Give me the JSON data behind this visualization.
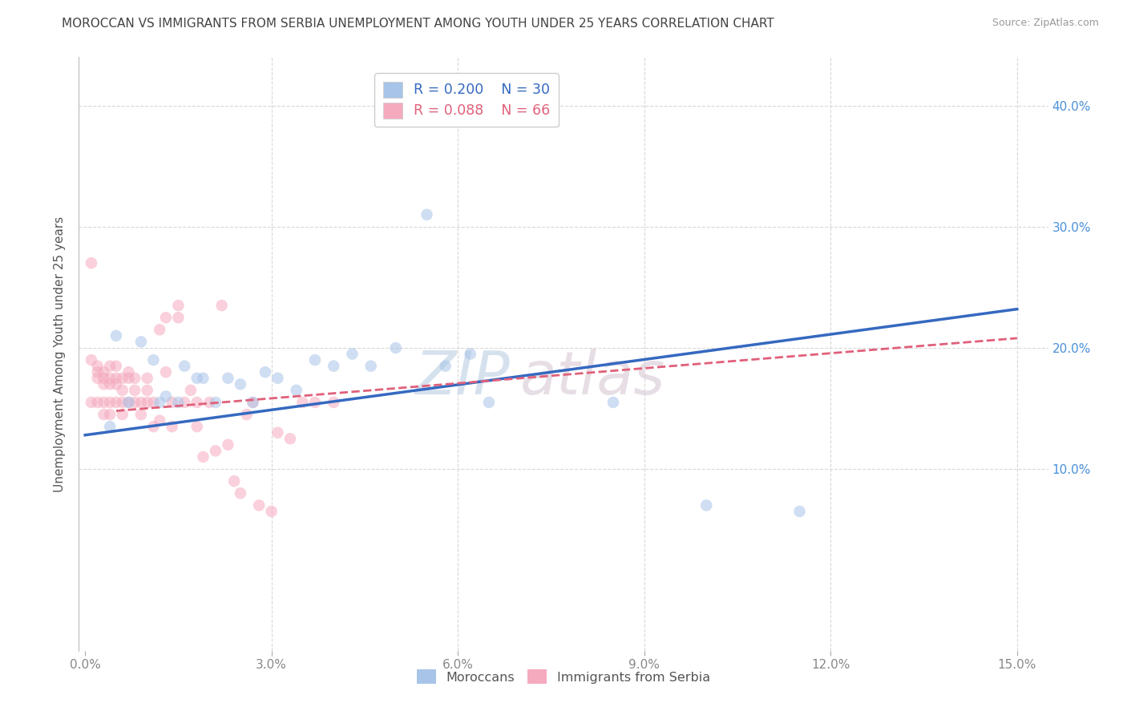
{
  "title": "MOROCCAN VS IMMIGRANTS FROM SERBIA UNEMPLOYMENT AMONG YOUTH UNDER 25 YEARS CORRELATION CHART",
  "source": "Source: ZipAtlas.com",
  "ylabel": "Unemployment Among Youth under 25 years",
  "xlim": [
    -0.001,
    0.155
  ],
  "ylim": [
    -0.05,
    0.44
  ],
  "xticks": [
    0.0,
    0.03,
    0.06,
    0.09,
    0.12,
    0.15
  ],
  "xtick_labels": [
    "0.0%",
    "3.0%",
    "6.0%",
    "9.0%",
    "12.0%",
    "15.0%"
  ],
  "ytick_labels_right": [
    "10.0%",
    "20.0%",
    "30.0%",
    "40.0%"
  ],
  "yticks_right": [
    0.1,
    0.2,
    0.3,
    0.4
  ],
  "watermark_zip": "ZIP",
  "watermark_atlas": "atlas",
  "legend_blue_r": "R = 0.200",
  "legend_blue_n": "N = 30",
  "legend_pink_r": "R = 0.088",
  "legend_pink_n": "N = 66",
  "legend_label_blue": "Moroccans",
  "legend_label_pink": "Immigrants from Serbia",
  "blue_color": "#a8c4e8",
  "pink_color": "#f5aabe",
  "blue_line_color": "#3569c0",
  "pink_line_color": "#e0607a",
  "title_color": "#444444",
  "source_color": "#999999",
  "blue_scatter_x": [
    0.004,
    0.005,
    0.007,
    0.009,
    0.011,
    0.012,
    0.013,
    0.015,
    0.016,
    0.018,
    0.019,
    0.021,
    0.023,
    0.025,
    0.027,
    0.029,
    0.031,
    0.034,
    0.037,
    0.04,
    0.043,
    0.046,
    0.05,
    0.055,
    0.058,
    0.062,
    0.065,
    0.085,
    0.1,
    0.115
  ],
  "blue_scatter_y": [
    0.135,
    0.21,
    0.155,
    0.205,
    0.19,
    0.155,
    0.16,
    0.155,
    0.185,
    0.175,
    0.175,
    0.155,
    0.175,
    0.17,
    0.155,
    0.18,
    0.175,
    0.165,
    0.19,
    0.185,
    0.195,
    0.185,
    0.2,
    0.31,
    0.185,
    0.195,
    0.155,
    0.155,
    0.07,
    0.065
  ],
  "pink_scatter_x": [
    0.001,
    0.001,
    0.001,
    0.002,
    0.002,
    0.002,
    0.002,
    0.003,
    0.003,
    0.003,
    0.003,
    0.003,
    0.004,
    0.004,
    0.004,
    0.004,
    0.004,
    0.005,
    0.005,
    0.005,
    0.005,
    0.006,
    0.006,
    0.006,
    0.006,
    0.007,
    0.007,
    0.007,
    0.008,
    0.008,
    0.008,
    0.009,
    0.009,
    0.01,
    0.01,
    0.01,
    0.011,
    0.011,
    0.012,
    0.012,
    0.013,
    0.013,
    0.014,
    0.014,
    0.015,
    0.015,
    0.016,
    0.017,
    0.018,
    0.018,
    0.019,
    0.02,
    0.021,
    0.022,
    0.023,
    0.024,
    0.025,
    0.026,
    0.027,
    0.028,
    0.03,
    0.031,
    0.033,
    0.035,
    0.037,
    0.04
  ],
  "pink_scatter_y": [
    0.27,
    0.19,
    0.155,
    0.185,
    0.18,
    0.175,
    0.155,
    0.18,
    0.175,
    0.17,
    0.155,
    0.145,
    0.185,
    0.175,
    0.17,
    0.155,
    0.145,
    0.185,
    0.175,
    0.17,
    0.155,
    0.175,
    0.165,
    0.155,
    0.145,
    0.18,
    0.175,
    0.155,
    0.175,
    0.165,
    0.155,
    0.155,
    0.145,
    0.175,
    0.165,
    0.155,
    0.155,
    0.135,
    0.215,
    0.14,
    0.225,
    0.18,
    0.155,
    0.135,
    0.235,
    0.225,
    0.155,
    0.165,
    0.155,
    0.135,
    0.11,
    0.155,
    0.115,
    0.235,
    0.12,
    0.09,
    0.08,
    0.145,
    0.155,
    0.07,
    0.065,
    0.13,
    0.125,
    0.155,
    0.155,
    0.155
  ],
  "blue_line_x": [
    0.0,
    0.15
  ],
  "blue_line_y": [
    0.128,
    0.232
  ],
  "pink_line_x": [
    0.005,
    0.15
  ],
  "pink_line_y": [
    0.148,
    0.208
  ],
  "background_color": "#ffffff",
  "grid_color": "#d8d8d8",
  "scatter_size": 110,
  "scatter_alpha": 0.55
}
